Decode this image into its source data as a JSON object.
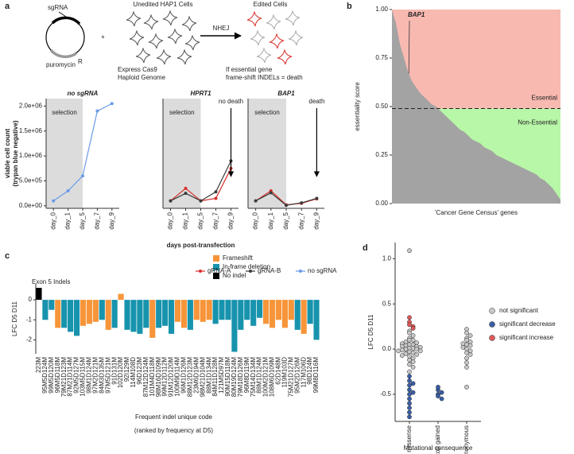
{
  "panel_labels": [
    "a",
    "b",
    "c",
    "d"
  ],
  "schematic": {
    "plasmid": "sgRNA",
    "resistance": "puromycin",
    "resistance_sup": "R",
    "plus": "+",
    "unedited": "Unedited HAP1 Cells",
    "edited": "Edited Cells",
    "arrow": "NHEJ",
    "cas9": [
      "Express Cas9",
      "Haploid Genome"
    ],
    "essential": [
      "If essential gene",
      "frame-shift INDELs = death"
    ]
  },
  "chart_data": [
    {
      "type": "line",
      "title": "no sgRNA",
      "categories": [
        "day_0",
        "day_1",
        "day_5",
        "day_7",
        "day_9"
      ],
      "ylim": [
        -50000,
        2150000
      ],
      "yticks": [
        {
          "value": 0,
          "label": "0.0e+00"
        },
        {
          "value": 500000,
          "label": "5.0e+05"
        },
        {
          "value": 1000000,
          "label": "1.0e+06"
        },
        {
          "value": 1500000,
          "label": "1.5e+06"
        },
        {
          "value": 2000000,
          "label": "2.0e+06"
        }
      ],
      "ylabel": [
        "viable cell count",
        "(trypan blue negative)"
      ],
      "shade_label": "selection",
      "series": [
        {
          "name": "no sgRNA",
          "color": "#6a9be8",
          "values": [
            100000,
            300000,
            600000,
            1900000,
            2050000
          ]
        }
      ]
    },
    {
      "type": "line",
      "title": "HPRT1",
      "categories": [
        "day_0",
        "day_1",
        "day_5",
        "day_7",
        "day_9"
      ],
      "ylim": [
        -50000,
        2150000
      ],
      "shade_label": "selection",
      "xlabel": "days post-transfection",
      "annotation": {
        "text": "no death",
        "color": "#3aa832"
      },
      "series": [
        {
          "name": "gRNA-A",
          "color": "#d7302b",
          "values": [
            100000,
            350000,
            100000,
            150000,
            750000
          ]
        },
        {
          "name": "gRNA-B",
          "color": "#3b3b3b",
          "values": [
            100000,
            250000,
            100000,
            280000,
            900000
          ]
        }
      ]
    },
    {
      "type": "line",
      "title": "BAP1",
      "categories": [
        "day_0",
        "day_1",
        "day_5",
        "day_7",
        "day_9"
      ],
      "ylim": [
        -50000,
        2150000
      ],
      "shade_label": "selection",
      "annotation": {
        "text": "death",
        "color": "#e0201b"
      },
      "series": [
        {
          "color": "#d7302b",
          "values": [
            100000,
            300000,
            20000,
            50000,
            140000
          ]
        },
        {
          "color": "#3b3b3b",
          "values": [
            100000,
            260000,
            10000,
            60000,
            150000
          ]
        }
      ]
    },
    {
      "type": "area",
      "ylabel": "essentiality score",
      "xlabel": "'Cancer Gene Census' genes",
      "color": "#a3a3a3",
      "values": [
        1.0,
        0.93,
        0.82,
        0.75,
        0.68,
        0.63,
        0.6,
        0.57,
        0.55,
        0.53,
        0.51,
        0.5,
        0.48,
        0.46,
        0.44,
        0.42,
        0.4,
        0.38,
        0.37,
        0.35,
        0.33,
        0.32,
        0.31,
        0.29,
        0.28,
        0.27,
        0.25,
        0.24,
        0.23,
        0.22,
        0.21,
        0.2,
        0.19,
        0.18,
        0.17,
        0.16,
        0.15,
        0.13,
        0.12,
        0.1,
        0.08,
        0.05,
        0.02
      ],
      "ylim": [
        0,
        1
      ],
      "yticks": [
        {
          "value": 0,
          "label": "0.00"
        },
        0.25,
        {
          "value": 0.5,
          "label": "0.50"
        },
        0.75,
        {
          "value": 1,
          "label": "1.00"
        }
      ],
      "threshold": 0.49,
      "regions": [
        {
          "label": "Essential",
          "color": "#f8b9b1"
        },
        {
          "label": "Non-Essential",
          "color": "#b8f6a8"
        }
      ],
      "highlight": {
        "label": "BAP1",
        "value": 0.67
      }
    },
    {
      "type": "bar",
      "title": "Exon 5 Indels",
      "ylabel": "LFC D5 D11",
      "xlabel": [
        "Frequent indel unique code",
        "(ranked by frequency at D5)"
      ],
      "categories": [
        "223M",
        "95M5D124M",
        "99M5D120M",
        "96M5D118M",
        "79M21D123M",
        "87M21D114M",
        "92M5D127M",
        "103M5D115M",
        "98M1D124M",
        "97M2D121M",
        "84M3D135M",
        "97M5D121M",
        "91D131M",
        "102D120M",
        "92I129M",
        "114M108D",
        "96D123M",
        "87M12D124M",
        "101M4D118M",
        "98M16D109M",
        "99M12D112M",
        "91M12D120M",
        "100M9D114M",
        "96M1D126M",
        "88M12D123M",
        "23M6D194M",
        "98M21D104M",
        "88M1D134M",
        "84M11D128M",
        "121M5D97M",
        "90M15D118M",
        "80M19D124M",
        "79M18D126M",
        "96M8D119M",
        "75M14D134M",
        "88M1D124M",
        "100M2D121M",
        "108M6D109M",
        "62D148M",
        "119M103D",
        "75M21D127M",
        "95M2D126M",
        "117M106D",
        "98D124M",
        "99M8D116M"
      ],
      "values": [
        0.6,
        -1.0,
        -0.5,
        -1.4,
        -1.4,
        -1.6,
        -1.8,
        -1.3,
        -1.2,
        -1.1,
        -1.0,
        -1.5,
        -1.4,
        0.3,
        -1.5,
        -1.6,
        -1.7,
        -1.4,
        -1.9,
        -1.4,
        -1.3,
        -1.7,
        -1.1,
        -1.4,
        -1.5,
        -1.0,
        -1.1,
        -1.0,
        -1.2,
        -1.0,
        -1.0,
        -2.6,
        -1.5,
        -1.0,
        -1.3,
        -0.9,
        -1.2,
        -1.4,
        -1.0,
        -1.4,
        -1.0,
        -1.5,
        -1.7,
        -1.2,
        -2.0
      ],
      "colors": [
        "#000000",
        "#1793ad",
        "#1793ad",
        "#f7953a",
        "#1793ad",
        "#1793ad",
        "#1793ad",
        "#f7953a",
        "#f7953a",
        "#f7953a",
        "#1793ad",
        "#f7953a",
        "#1793ad",
        "#f7953a",
        "#1793ad",
        "#1793ad",
        "#1793ad",
        "#1793ad",
        "#f7953a",
        "#1793ad",
        "#1793ad",
        "#1793ad",
        "#f7953a",
        "#f7953a",
        "#1793ad",
        "#f7953a",
        "#f7953a",
        "#f7953a",
        "#1793ad",
        "#1793ad",
        "#1793ad",
        "#1793ad",
        "#1793ad",
        "#1793ad",
        "#1793ad",
        "#1793ad",
        "#f7953a",
        "#f7953a",
        "#f7953a",
        "#f7953a",
        "#f7953a",
        "#1793ad",
        "#f7953a",
        "#1793ad",
        "#1793ad"
      ],
      "legend": [
        {
          "name": "Frameshift",
          "color": "#f7953a"
        },
        {
          "name": "In-frame deletion",
          "color": "#1793ad"
        },
        {
          "name": "No indel",
          "color": "#000000"
        }
      ],
      "ylim": [
        -2.7,
        0.8
      ],
      "yticks": [
        0,
        -1,
        -2
      ]
    },
    {
      "type": "strip",
      "ylabel": "LFC D5 D11",
      "xlabel": "Mutational consequence",
      "categories": [
        "missense",
        "stop gained",
        "synonymous"
      ],
      "ylim": [
        -0.8,
        1.18
      ],
      "yticks": [
        -0.5,
        {
          "value": 0,
          "label": "0.0"
        },
        0.5,
        {
          "value": 1,
          "label": "1.0"
        }
      ],
      "series": [
        {
          "name": "not significant",
          "color": "#c8c8c8",
          "x": [
            "missense",
            "missense",
            "missense",
            "missense",
            "missense",
            "missense",
            "missense",
            "missense",
            "missense",
            "missense",
            "missense",
            "missense",
            "missense",
            "missense",
            "missense",
            "missense",
            "missense",
            "missense",
            "missense",
            "missense",
            "missense",
            "missense",
            "missense",
            "missense",
            "missense",
            "missense",
            "missense",
            "missense",
            "missense",
            "missense",
            "missense",
            "missense",
            "missense",
            "missense",
            "missense",
            "synonymous",
            "synonymous",
            "synonymous",
            "synonymous",
            "synonymous",
            "synonymous",
            "synonymous",
            "synonymous",
            "synonymous",
            "synonymous",
            "synonymous",
            "synonymous",
            "synonymous",
            "synonymous",
            "synonymous",
            "synonymous",
            "synonymous",
            "synonymous"
          ],
          "values": [
            1.09,
            0.2,
            0.18,
            0.15,
            0.12,
            0.1,
            0.1,
            0.08,
            0.07,
            0.06,
            0.05,
            0.05,
            0.04,
            0.03,
            0.03,
            0.02,
            0.01,
            0.01,
            0,
            0,
            -0.01,
            -0.02,
            -0.02,
            -0.03,
            -0.04,
            -0.05,
            -0.06,
            -0.07,
            -0.08,
            -0.1,
            -0.12,
            -0.14,
            -0.17,
            -0.2,
            -0.25,
            0.22,
            0.18,
            0.15,
            0.12,
            0.1,
            0.08,
            0.06,
            0.05,
            0.04,
            0.02,
            0,
            -0.02,
            -0.04,
            -0.06,
            -0.1,
            -0.15,
            -0.2,
            -0.42
          ]
        },
        {
          "name": "significant decrease",
          "color": "#3a5fa8",
          "x": [
            "missense",
            "missense",
            "missense",
            "missense",
            "missense",
            "missense",
            "missense",
            "missense",
            "missense",
            "missense",
            "missense",
            "missense",
            "stop gained",
            "stop gained",
            "stop gained",
            "stop gained",
            "stop gained",
            "stop gained"
          ],
          "values": [
            -0.3,
            -0.35,
            -0.4,
            -0.45,
            -0.5,
            -0.55,
            -0.6,
            -0.65,
            -0.7,
            -0.75,
            -0.38,
            -0.48,
            -0.45,
            -0.5,
            -0.52,
            -0.55,
            -0.48,
            -0.42
          ]
        },
        {
          "name": "significant increase",
          "color": "#e05a5a",
          "x": [
            "missense",
            "missense",
            "missense",
            "missense",
            "missense"
          ],
          "values": [
            0.35,
            0.3,
            0.27,
            0.25,
            0.23
          ]
        }
      ]
    }
  ]
}
